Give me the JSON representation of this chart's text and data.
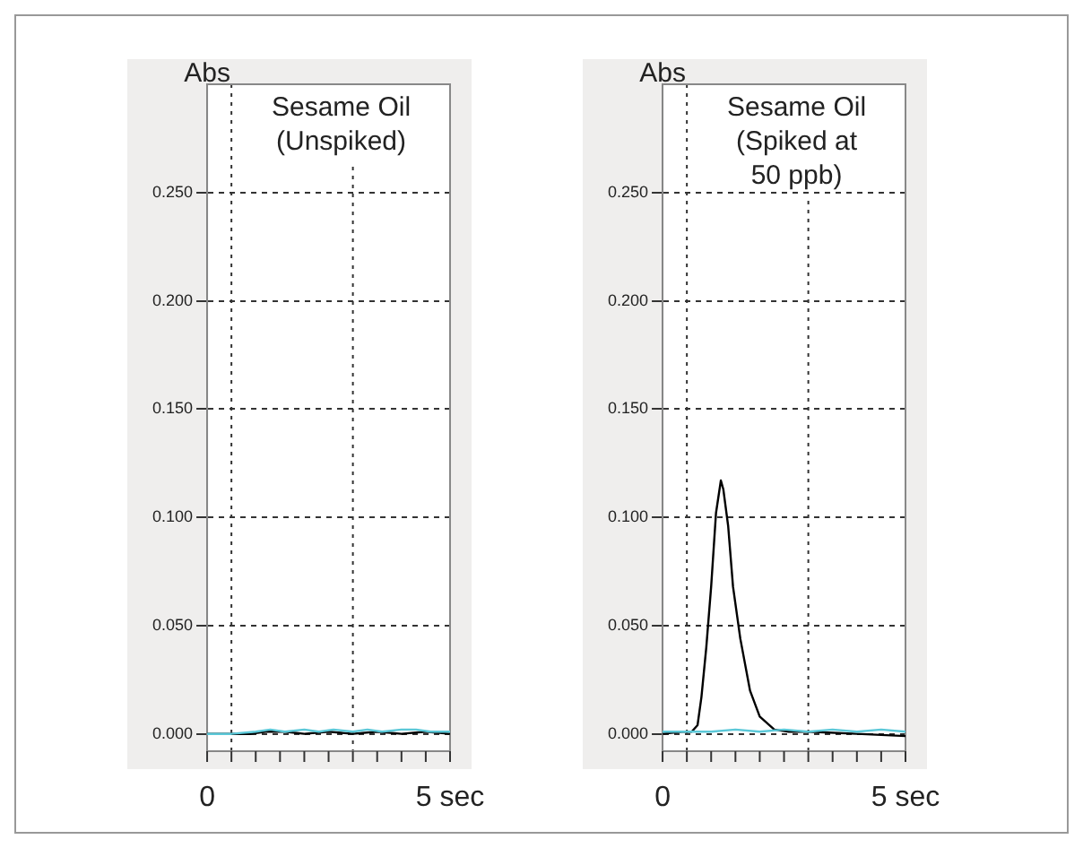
{
  "chart_data": [
    {
      "type": "line",
      "ylabel": "Abs",
      "xlim": [
        0,
        5
      ],
      "xticks": [
        {
          "value": 0,
          "label": "0"
        },
        {
          "value": 0.5,
          "label": null
        },
        {
          "value": 1,
          "label": null
        },
        {
          "value": 1.5,
          "label": null
        },
        {
          "value": 2,
          "label": null
        },
        {
          "value": 2.5,
          "label": null
        },
        {
          "value": 3,
          "label": null
        },
        {
          "value": 3.5,
          "label": null
        },
        {
          "value": 4,
          "label": null
        },
        {
          "value": 4.5,
          "label": null
        },
        {
          "value": 5,
          "label": "5 sec"
        }
      ],
      "ylim": [
        -0.008,
        0.3
      ],
      "yticks": [
        {
          "value": 0,
          "label": "0.000"
        },
        {
          "value": 0.05,
          "label": "0.050"
        },
        {
          "value": 0.1,
          "label": "0.100"
        },
        {
          "value": 0.15,
          "label": "0.150"
        },
        {
          "value": 0.2,
          "label": "0.200"
        },
        {
          "value": 0.25,
          "label": "0.250"
        }
      ],
      "grid": "y",
      "legend": false,
      "line_style": "solid",
      "marker": "none",
      "ref_lines": [
        {
          "axis": "x",
          "value": 0.5,
          "line_style": "dotted",
          "color": "#333333"
        },
        {
          "axis": "x",
          "value": 3,
          "line_style": "dotted",
          "color": "#333333"
        }
      ],
      "annotations": [
        "Sesame Oil (Unspiked)"
      ],
      "series": [
        {
          "color": "#5bc8d8",
          "x": [
            0,
            0.5,
            1,
            1.3,
            1.6,
            2,
            2.3,
            2.6,
            3,
            3.3,
            3.6,
            4,
            4.3,
            4.6,
            5
          ],
          "values": [
            0,
            0,
            0.001,
            0.002,
            0.001,
            0.002,
            0.001,
            0.002,
            0.001,
            0.002,
            0.001,
            0.002,
            0.002,
            0.001,
            0.001
          ]
        },
        {
          "color": "#000000",
          "x": [
            0,
            0.5,
            0.9,
            1.2,
            1.6,
            2,
            2.5,
            3,
            3.5,
            4,
            4.5,
            5
          ],
          "values": [
            0,
            0,
            0,
            0.001,
            0.001,
            0,
            0.001,
            0,
            0.001,
            0,
            0.001,
            0
          ]
        }
      ]
    },
    {
      "type": "line",
      "ylabel": "Abs",
      "xlim": [
        0,
        5
      ],
      "xticks": [
        {
          "value": 0,
          "label": "0"
        },
        {
          "value": 0.5,
          "label": null
        },
        {
          "value": 1,
          "label": null
        },
        {
          "value": 1.5,
          "label": null
        },
        {
          "value": 2,
          "label": null
        },
        {
          "value": 2.5,
          "label": null
        },
        {
          "value": 3,
          "label": null
        },
        {
          "value": 3.5,
          "label": null
        },
        {
          "value": 4,
          "label": null
        },
        {
          "value": 4.5,
          "label": null
        },
        {
          "value": 5,
          "label": "5 sec"
        }
      ],
      "ylim": [
        -0.008,
        0.3
      ],
      "yticks": [
        {
          "value": 0,
          "label": "0.000"
        },
        {
          "value": 0.05,
          "label": "0.050"
        },
        {
          "value": 0.1,
          "label": "0.100"
        },
        {
          "value": 0.15,
          "label": "0.150"
        },
        {
          "value": 0.2,
          "label": "0.200"
        },
        {
          "value": 0.25,
          "label": "0.250"
        }
      ],
      "grid": "y",
      "legend": false,
      "line_style": "solid",
      "marker": "none",
      "ref_lines": [
        {
          "axis": "x",
          "value": 0.5,
          "line_style": "dotted",
          "color": "#333333"
        },
        {
          "axis": "x",
          "value": 3,
          "line_style": "dotted",
          "color": "#333333"
        }
      ],
      "annotations": [
        "Sesame Oil (Spiked at 50 ppb)"
      ],
      "series": [
        {
          "color": "#5bc8d8",
          "x": [
            0,
            0.5,
            1,
            1.5,
            2,
            2.5,
            3,
            3.5,
            4,
            4.5,
            5
          ],
          "values": [
            0.001,
            0.001,
            0.001,
            0.002,
            0.001,
            0.002,
            0.001,
            0.002,
            0.001,
            0.002,
            0.001
          ]
        },
        {
          "color": "#000000",
          "x": [
            0,
            0.4,
            0.6,
            0.72,
            0.8,
            0.9,
            1,
            1.1,
            1.2,
            1.25,
            1.35,
            1.45,
            1.6,
            1.8,
            2,
            2.3,
            2.6,
            3,
            4,
            5
          ],
          "values": [
            0,
            0.001,
            0.001,
            0.004,
            0.017,
            0.04,
            0.068,
            0.102,
            0.117,
            0.113,
            0.096,
            0.068,
            0.044,
            0.02,
            0.008,
            0.002,
            0.001,
            0.001,
            0,
            -0.001
          ]
        }
      ]
    }
  ]
}
